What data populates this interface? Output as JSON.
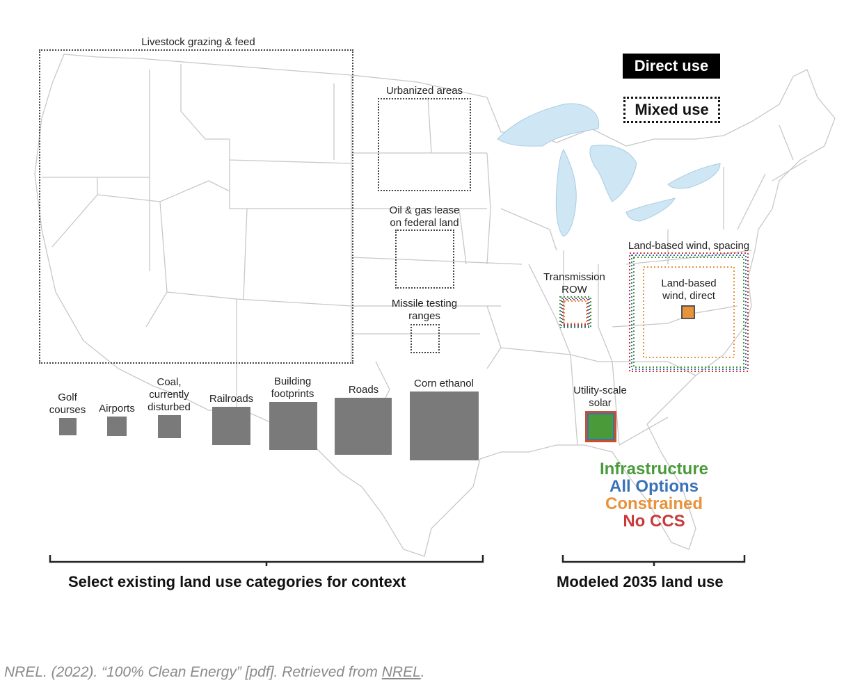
{
  "legend": {
    "direct_use": "Direct use",
    "mixed_use": "Mixed use"
  },
  "labels": {
    "livestock": "Livestock grazing & feed",
    "urbanized": "Urbanized areas",
    "oil_gas_1": "Oil & gas lease",
    "oil_gas_2": "on federal land",
    "missile_1": "Missile testing",
    "missile_2": "ranges",
    "golf_1": "Golf",
    "golf_2": "courses",
    "airports": "Airports",
    "coal_1": "Coal,",
    "coal_2": "currently",
    "coal_3": "disturbed",
    "railroads": "Railroads",
    "building_1": "Building",
    "building_2": "footprints",
    "roads": "Roads",
    "corn": "Corn ethanol",
    "transmission_1": "Transmission",
    "transmission_2": "ROW",
    "wind_spacing": "Land-based wind, spacing",
    "wind_direct_1": "Land-based",
    "wind_direct_2": "wind, direct",
    "solar_1": "Utility-scale",
    "solar_2": "solar"
  },
  "scenarios": [
    {
      "name": "Infrastructure",
      "color": "#4a9a3a"
    },
    {
      "name": "All Options",
      "color": "#3a72b8"
    },
    {
      "name": "Constrained",
      "color": "#e8923a"
    },
    {
      "name": "No CCS",
      "color": "#c83a3a"
    }
  ],
  "sections": {
    "existing": "Select existing land use categories for context",
    "modeled": "Modeled 2035 land use"
  },
  "source": {
    "prefix": "NREL. (2022). “100% Clean Energy” [pdf]. Retrieved from ",
    "link": "NREL",
    "suffix": "."
  },
  "colors": {
    "lakes": "#cfe7f5",
    "state_lines": "#c8c8c8",
    "direct_fill": "#7a7a7a"
  }
}
